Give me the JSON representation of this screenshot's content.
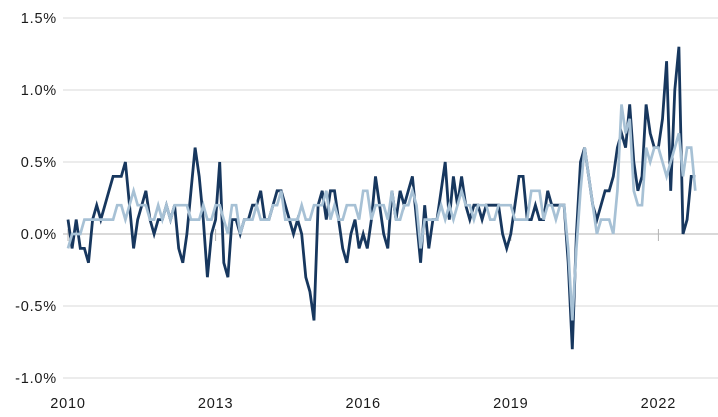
{
  "chart_data": {
    "type": "line",
    "title": "",
    "description_visible_text_only": "",
    "x_axis": {
      "start": "2010-01",
      "end": "2022-10",
      "frequency": "monthly",
      "tick_labels": [
        "2010",
        "2013",
        "2016",
        "2019",
        "2022"
      ],
      "tick_years": [
        2010,
        2013,
        2016,
        2019,
        2022
      ]
    },
    "y_axis": {
      "tick_labels": [
        "1.5%",
        "1.0%",
        "0.5%",
        "0.0%",
        "-0.5%",
        "-1.0%"
      ],
      "tick_values": [
        1.5,
        1.0,
        0.5,
        0.0,
        -0.5,
        -1.0
      ],
      "min": -1.0,
      "max": 1.5,
      "unit": "%"
    },
    "grid": {
      "horizontal": true,
      "vertical": false,
      "zero_line_emphasized": true,
      "zero_line_year_ticks": true
    },
    "legend": {
      "visible": false
    },
    "series": [
      {
        "name": "dark-navy-line",
        "color": "#17375e",
        "values": [
          0.1,
          -0.1,
          0.1,
          -0.1,
          -0.1,
          -0.2,
          0.1,
          0.2,
          0.1,
          0.2,
          0.3,
          0.4,
          0.4,
          0.4,
          0.5,
          0.2,
          -0.1,
          0.1,
          0.2,
          0.3,
          0.1,
          0.0,
          0.1,
          0.1,
          0.2,
          0.1,
          0.2,
          -0.1,
          -0.2,
          0.0,
          0.3,
          0.6,
          0.4,
          0.1,
          -0.3,
          0.0,
          0.1,
          0.5,
          -0.2,
          -0.3,
          0.1,
          0.1,
          0.0,
          0.1,
          0.1,
          0.2,
          0.2,
          0.3,
          0.1,
          0.1,
          0.2,
          0.3,
          0.3,
          0.2,
          0.1,
          0.0,
          0.1,
          0.0,
          -0.3,
          -0.4,
          -0.6,
          0.2,
          0.3,
          0.1,
          0.3,
          0.3,
          0.1,
          -0.1,
          -0.2,
          0.0,
          0.1,
          -0.1,
          0.0,
          -0.1,
          0.1,
          0.4,
          0.2,
          0.0,
          -0.1,
          0.3,
          0.1,
          0.3,
          0.2,
          0.3,
          0.4,
          0.1,
          -0.2,
          0.2,
          -0.1,
          0.1,
          0.1,
          0.3,
          0.5,
          0.1,
          0.4,
          0.2,
          0.4,
          0.2,
          0.1,
          0.2,
          0.2,
          0.1,
          0.2,
          0.2,
          0.2,
          0.2,
          0.0,
          -0.1,
          0.0,
          0.2,
          0.4,
          0.4,
          0.1,
          0.1,
          0.2,
          0.1,
          0.1,
          0.3,
          0.2,
          0.2,
          0.2,
          0.2,
          -0.2,
          -0.8,
          0.0,
          0.5,
          0.6,
          0.4,
          0.2,
          0.1,
          0.2,
          0.3,
          0.3,
          0.4,
          0.6,
          0.7,
          0.6,
          0.9,
          0.5,
          0.3,
          0.4,
          0.9,
          0.7,
          0.6,
          0.6,
          0.8,
          1.2,
          0.3,
          1.0,
          1.3,
          0.0,
          0.1,
          0.4,
          0.4
        ]
      },
      {
        "name": "light-blue-line",
        "color": "#a7c1d5",
        "values": [
          -0.1,
          0.0,
          0.0,
          0.0,
          0.1,
          0.1,
          0.1,
          0.1,
          0.1,
          0.1,
          0.1,
          0.1,
          0.2,
          0.2,
          0.1,
          0.2,
          0.3,
          0.2,
          0.2,
          0.2,
          0.1,
          0.1,
          0.2,
          0.1,
          0.2,
          0.1,
          0.2,
          0.2,
          0.2,
          0.2,
          0.1,
          0.1,
          0.1,
          0.2,
          0.1,
          0.1,
          0.2,
          0.2,
          0.1,
          0.0,
          0.2,
          0.2,
          0.0,
          0.1,
          0.1,
          0.1,
          0.2,
          0.1,
          0.1,
          0.1,
          0.2,
          0.2,
          0.3,
          0.1,
          0.1,
          0.1,
          0.1,
          0.2,
          0.1,
          0.1,
          0.2,
          0.2,
          0.2,
          0.3,
          0.1,
          0.2,
          0.1,
          0.1,
          0.2,
          0.2,
          0.2,
          0.1,
          0.3,
          0.3,
          0.1,
          0.2,
          0.2,
          0.2,
          0.1,
          0.3,
          0.1,
          0.1,
          0.2,
          0.2,
          0.3,
          0.2,
          -0.1,
          0.1,
          0.1,
          0.1,
          0.1,
          0.2,
          0.1,
          0.2,
          0.1,
          0.2,
          0.3,
          0.2,
          0.2,
          0.1,
          0.2,
          0.2,
          0.2,
          0.1,
          0.1,
          0.2,
          0.2,
          0.2,
          0.2,
          0.1,
          0.1,
          0.1,
          0.1,
          0.3,
          0.3,
          0.3,
          0.1,
          0.2,
          0.2,
          0.1,
          0.2,
          0.2,
          -0.1,
          -0.6,
          -0.1,
          0.3,
          0.6,
          0.4,
          0.2,
          0.0,
          0.1,
          0.1,
          0.1,
          0.0,
          0.3,
          0.9,
          0.7,
          0.8,
          0.3,
          0.2,
          0.2,
          0.6,
          0.5,
          0.6,
          0.6,
          0.5,
          0.4,
          0.5,
          0.6,
          0.7,
          0.4,
          0.6,
          0.6,
          0.3
        ]
      }
    ]
  },
  "colors": {
    "background": "#ffffff",
    "gridline": "#d9d9d9",
    "zero_line": "#b3b3b3",
    "axis_text": "#1a1a1a",
    "series_dark": "#17375e",
    "series_light": "#a7c1d5"
  }
}
